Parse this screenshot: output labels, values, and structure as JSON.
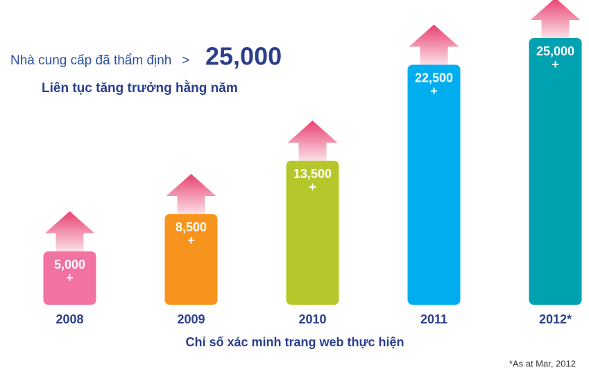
{
  "chart_data": {
    "type": "bar",
    "title": "Nhà cung cấp đã thẩm định",
    "title_separator": ">",
    "headline_value": "25,000",
    "subtitle": "Liên tục tăng trưởng hằng năm",
    "x_label": "Chỉ số xác minh trang web thực hiện",
    "note": "*As at Mar, 2012",
    "categories": [
      "2008",
      "2009",
      "2010",
      "2011",
      "2012*"
    ],
    "values": [
      5000,
      8500,
      13500,
      22500,
      25000
    ],
    "value_labels": [
      "5,000",
      "8,500",
      "13,500",
      "22,500",
      "25,000"
    ],
    "value_suffix": "+",
    "colors": [
      "#f272a2",
      "#f7941d",
      "#b6c72b",
      "#00aeef",
      "#00a1b0"
    ]
  }
}
